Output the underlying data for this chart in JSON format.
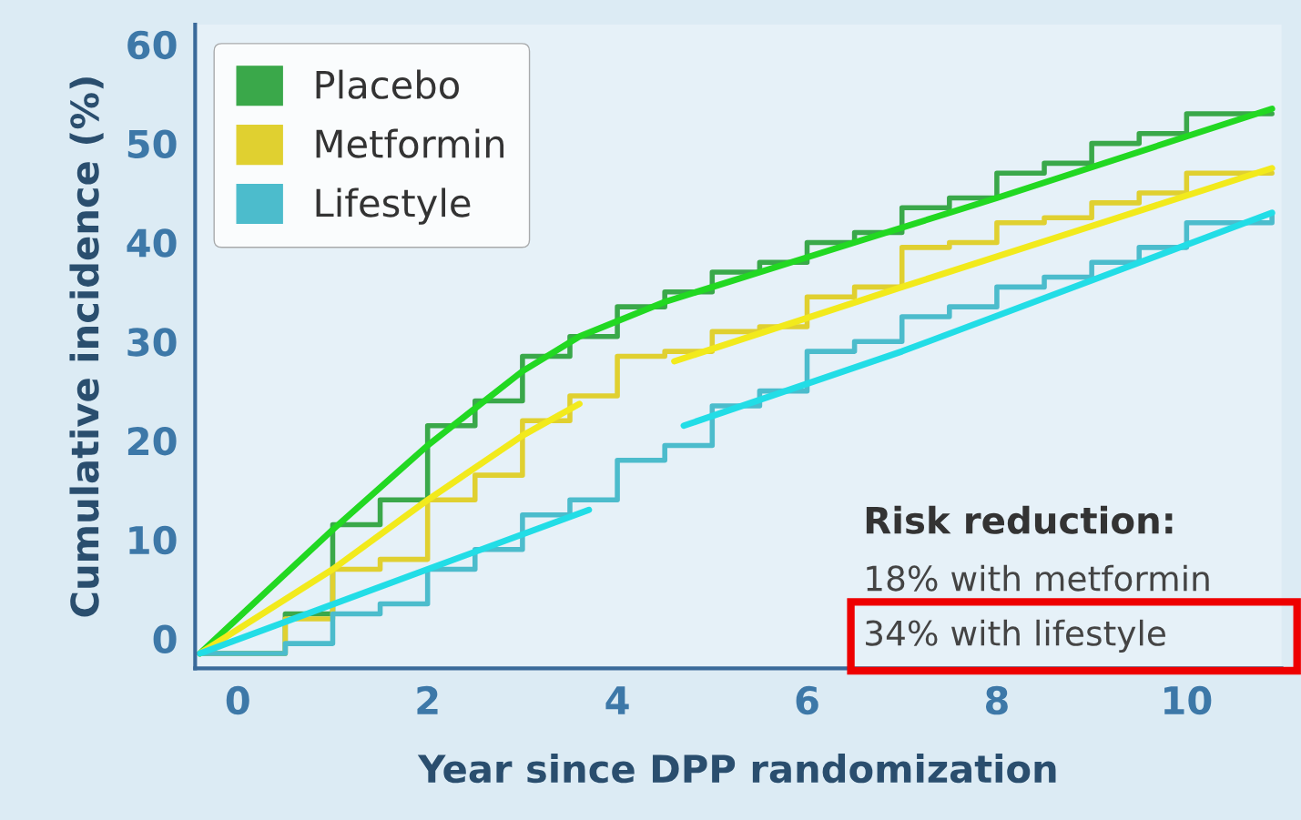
{
  "chart_data": {
    "type": "step",
    "xlabel": "Year since DPP randomization",
    "ylabel": "Cumulative incidence (%)",
    "xlim": [
      -0.45,
      11
    ],
    "ylim": [
      -3,
      62
    ],
    "xticks": [
      0,
      2,
      4,
      6,
      8,
      10
    ],
    "yticks": [
      0,
      10,
      20,
      30,
      40,
      50,
      60
    ],
    "grid": false,
    "legend": "top left",
    "line_style": "solid",
    "marker": "none",
    "annotations": [
      "Risk reduction:",
      "18% with metformin",
      "34% with lifestyle"
    ],
    "series": [
      {
        "name": "Placebo",
        "color": "#3aa84a",
        "x": [
          -0.4,
          0.5,
          1,
          1.5,
          2,
          2.5,
          3,
          3.5,
          4,
          4.5,
          5,
          5.5,
          6,
          6.5,
          7,
          7.5,
          8,
          8.5,
          9,
          9.5,
          10,
          10.9
        ],
        "values": [
          -1.5,
          2.5,
          11.5,
          14,
          21.5,
          24,
          28.5,
          30.5,
          33.5,
          35,
          37,
          38,
          40,
          41,
          43.5,
          44.5,
          47,
          48,
          50,
          51,
          53,
          53
        ]
      },
      {
        "name": "Metformin",
        "color": "#e0d030",
        "x": [
          -0.4,
          0.5,
          1,
          1.5,
          2,
          2.5,
          3,
          3.5,
          4,
          4.5,
          5,
          5.5,
          6,
          6.5,
          7,
          7.5,
          8,
          8.5,
          9,
          9.5,
          10,
          10.9
        ],
        "values": [
          -1.5,
          2,
          7,
          8,
          14,
          16.5,
          22,
          24.5,
          28.5,
          29,
          31,
          31.5,
          34.5,
          35.5,
          39.5,
          40,
          42,
          42.5,
          44,
          45,
          47,
          47
        ]
      },
      {
        "name": "Lifestyle",
        "color": "#4cbccc",
        "x": [
          -0.4,
          0.5,
          1,
          1.5,
          2,
          2.5,
          3,
          3.5,
          4,
          4.5,
          5,
          5.5,
          6,
          6.5,
          7,
          7.5,
          8,
          8.5,
          9,
          9.5,
          10,
          10.9
        ],
        "values": [
          -1.5,
          -0.5,
          2.5,
          3.5,
          7,
          9,
          12.5,
          14,
          18,
          19.5,
          23.5,
          25,
          29,
          30,
          32.5,
          33.5,
          35.5,
          36.5,
          38,
          39.5,
          42,
          43
        ]
      },
      {
        "type": "line",
        "color": "#22d822",
        "x": [
          -0.4,
          1,
          2,
          3,
          3.6,
          4.5,
          6,
          8,
          10.9
        ],
        "values": [
          -1.5,
          11,
          19.5,
          27,
          30.5,
          34,
          38.5,
          44.5,
          53.5
        ]
      },
      {
        "type": "line",
        "color": "#f2ea1c",
        "x": [
          -0.4,
          1,
          2,
          3,
          3.6,
          4.1,
          4.6,
          7,
          10.9
        ],
        "values": [
          -1.5,
          7,
          14,
          20.5,
          23.7,
          null,
          28,
          35.5,
          47.5
        ]
      },
      {
        "type": "line",
        "color": "#22dde6",
        "x": [
          -0.4,
          2,
          3.7,
          4.2,
          4.7,
          7,
          10.9
        ],
        "values": [
          -1.5,
          7,
          13,
          null,
          21.5,
          29,
          43
        ]
      }
    ]
  }
}
